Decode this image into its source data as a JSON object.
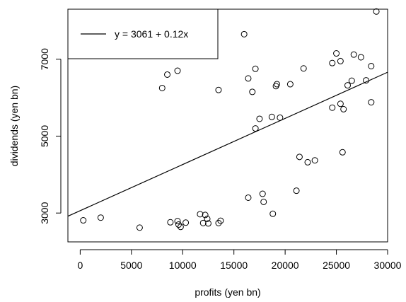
{
  "chart_data": {
    "type": "scatter",
    "title": "",
    "xlabel": "profits (yen bn)",
    "ylabel": "dividends (yen bn)",
    "xlim": [
      -1200,
      30000
    ],
    "ylim": [
      2250,
      8300
    ],
    "x_ticks": [
      0,
      5000,
      10000,
      15000,
      20000,
      25000,
      30000
    ],
    "x_tick_labels": [
      "0",
      "5000",
      "10000",
      "15000",
      "20000",
      "25000",
      "30000"
    ],
    "y_ticks": [
      3000,
      5000,
      7000
    ],
    "y_tick_labels": [
      "3000",
      "5000",
      "7000"
    ],
    "legend": {
      "placement": "top-left",
      "entries": [
        "y = 3061 + 0.12x"
      ]
    },
    "regression_line": {
      "intercept": 3061,
      "slope": 0.12,
      "label": "y = 3061 + 0.12x"
    },
    "grid": false,
    "points": [
      {
        "x": 300,
        "y": 2810
      },
      {
        "x": 2000,
        "y": 2880
      },
      {
        "x": 5800,
        "y": 2620
      },
      {
        "x": 8800,
        "y": 2760
      },
      {
        "x": 9500,
        "y": 2790
      },
      {
        "x": 9600,
        "y": 2700
      },
      {
        "x": 9800,
        "y": 2640
      },
      {
        "x": 10300,
        "y": 2750
      },
      {
        "x": 11700,
        "y": 2970
      },
      {
        "x": 12000,
        "y": 2740
      },
      {
        "x": 12200,
        "y": 2950
      },
      {
        "x": 12400,
        "y": 2850
      },
      {
        "x": 12500,
        "y": 2730
      },
      {
        "x": 13500,
        "y": 2740
      },
      {
        "x": 13700,
        "y": 2800
      },
      {
        "x": 8000,
        "y": 6250
      },
      {
        "x": 8500,
        "y": 6600
      },
      {
        "x": 9500,
        "y": 6700
      },
      {
        "x": 13500,
        "y": 6200
      },
      {
        "x": 16000,
        "y": 7650
      },
      {
        "x": 16400,
        "y": 3400
      },
      {
        "x": 16400,
        "y": 6500
      },
      {
        "x": 16800,
        "y": 6150
      },
      {
        "x": 17100,
        "y": 5200
      },
      {
        "x": 17100,
        "y": 6750
      },
      {
        "x": 17500,
        "y": 5450
      },
      {
        "x": 17800,
        "y": 3500
      },
      {
        "x": 17900,
        "y": 3290
      },
      {
        "x": 18700,
        "y": 5500
      },
      {
        "x": 18800,
        "y": 2980
      },
      {
        "x": 19100,
        "y": 6300
      },
      {
        "x": 19200,
        "y": 6350
      },
      {
        "x": 19500,
        "y": 5480
      },
      {
        "x": 20500,
        "y": 6350
      },
      {
        "x": 21100,
        "y": 3580
      },
      {
        "x": 21400,
        "y": 4460
      },
      {
        "x": 21800,
        "y": 6760
      },
      {
        "x": 22200,
        "y": 4320
      },
      {
        "x": 22900,
        "y": 4370
      },
      {
        "x": 24600,
        "y": 6900
      },
      {
        "x": 24600,
        "y": 5740
      },
      {
        "x": 25000,
        "y": 7150
      },
      {
        "x": 25400,
        "y": 6950
      },
      {
        "x": 25400,
        "y": 5840
      },
      {
        "x": 25600,
        "y": 4580
      },
      {
        "x": 25700,
        "y": 5700
      },
      {
        "x": 26100,
        "y": 6320
      },
      {
        "x": 26500,
        "y": 6440
      },
      {
        "x": 26700,
        "y": 7120
      },
      {
        "x": 27400,
        "y": 7050
      },
      {
        "x": 27900,
        "y": 6450
      },
      {
        "x": 28400,
        "y": 6820
      },
      {
        "x": 28400,
        "y": 5880
      },
      {
        "x": 28900,
        "y": 8240
      }
    ]
  }
}
